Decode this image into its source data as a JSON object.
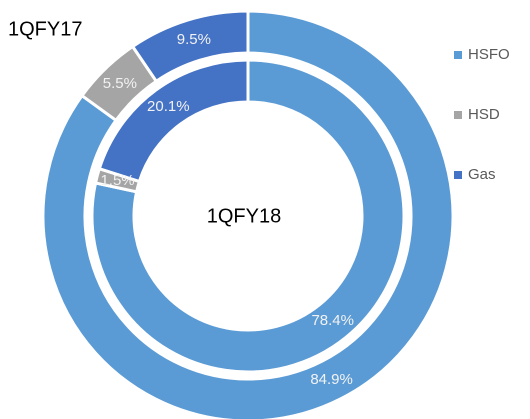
{
  "chart_data": {
    "type": "doughnut",
    "categories": [
      "HSFO",
      "HSD",
      "Gas"
    ],
    "colors": [
      "#5b9bd5",
      "#a5a5a5",
      "#4472c4"
    ],
    "series": [
      {
        "name": "1QFY17",
        "values": [
          84.9,
          5.5,
          9.5
        ],
        "value_labels": [
          "84.9%",
          "5.5%",
          "9.5%"
        ]
      },
      {
        "name": "1QFY18",
        "values": [
          78.4,
          1.5,
          20.1
        ],
        "value_labels": [
          "78.4%",
          "1.5%",
          "20.1%"
        ]
      }
    ],
    "legend": "right"
  }
}
